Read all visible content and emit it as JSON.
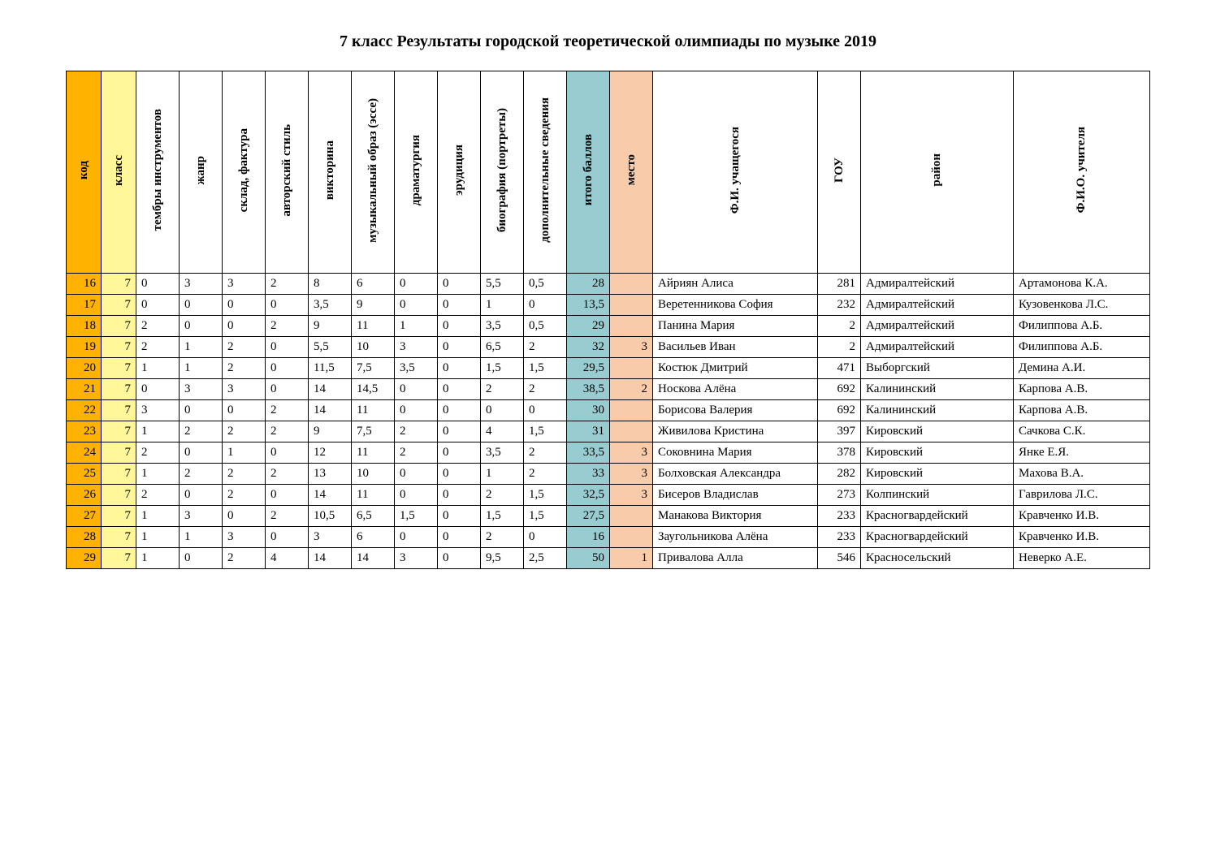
{
  "title": "7 класс Результаты городской теоретической олимпиады по музыке 2019",
  "colors": {
    "kod_bg": "#ffb300",
    "klass_bg": "#fff79a",
    "itogo_bg": "#99ccd0",
    "mesto_bg": "#f8cbaa",
    "border": "#000000",
    "bg": "#ffffff"
  },
  "columns": [
    {
      "key": "kod",
      "label": "код",
      "bg": "#ffb300",
      "class": "c-kod",
      "align": "right"
    },
    {
      "key": "klass",
      "label": "класс",
      "bg": "#fff79a",
      "class": "c-klass",
      "align": "right"
    },
    {
      "key": "c1",
      "label": "тембры  инструментов",
      "class": "c-narrow",
      "align": "left"
    },
    {
      "key": "c2",
      "label": "жанр",
      "class": "c-narrow",
      "align": "left"
    },
    {
      "key": "c3",
      "label": "склад, фактура",
      "class": "c-narrow",
      "align": "left"
    },
    {
      "key": "c4",
      "label": "авторский стиль",
      "class": "c-narrow",
      "align": "left"
    },
    {
      "key": "c5",
      "label": "викторина",
      "class": "c-narrow",
      "align": "left"
    },
    {
      "key": "c6",
      "label": "музыкальный образ (эссе)",
      "class": "c-narrow",
      "align": "left"
    },
    {
      "key": "c7",
      "label": "драматургия",
      "class": "c-narrow",
      "align": "left"
    },
    {
      "key": "c8",
      "label": "эрудиция",
      "class": "c-narrow",
      "align": "left"
    },
    {
      "key": "c9",
      "label": "биография (портреты)",
      "class": "c-narrow",
      "align": "left"
    },
    {
      "key": "c10",
      "label": "дополнительные сведения",
      "class": "c-narrow",
      "align": "left"
    },
    {
      "key": "itogo",
      "label": "итого баллов",
      "bg": "#99ccd0",
      "class": "c-narrow",
      "align": "right"
    },
    {
      "key": "mesto",
      "label": "место",
      "bg": "#f8cbaa",
      "class": "c-mesto",
      "align": "right"
    },
    {
      "key": "student",
      "label": "Ф.И. учащегося",
      "class": "c-student",
      "align": "left"
    },
    {
      "key": "gou",
      "label": "ГОУ",
      "class": "c-gou",
      "align": "right"
    },
    {
      "key": "rayon",
      "label": "район",
      "class": "c-rayon",
      "align": "left"
    },
    {
      "key": "teacher",
      "label": "Ф.И.О. учителя",
      "class": "c-teacher",
      "align": "left"
    }
  ],
  "rows": [
    {
      "kod": "16",
      "klass": "7",
      "c1": "0",
      "c2": "3",
      "c3": "3",
      "c4": "2",
      "c5": "8",
      "c6": "6",
      "c7": "0",
      "c8": "0",
      "c9": "5,5",
      "c10": "0,5",
      "itogo": "28",
      "mesto": "",
      "student": "Айриян Алиса",
      "gou": "281",
      "rayon": "Адмиралтейский",
      "teacher": "Артамонова К.А."
    },
    {
      "kod": "17",
      "klass": "7",
      "c1": "0",
      "c2": "0",
      "c3": "0",
      "c4": "0",
      "c5": "3,5",
      "c6": "9",
      "c7": "0",
      "c8": "0",
      "c9": "1",
      "c10": "0",
      "itogo": "13,5",
      "mesto": "",
      "student": "Веретенникова София",
      "gou": "232",
      "rayon": "Адмиралтейский",
      "teacher": "Кузовенкова Л.С."
    },
    {
      "kod": "18",
      "klass": "7",
      "c1": "2",
      "c2": "0",
      "c3": "0",
      "c4": "2",
      "c5": "9",
      "c6": "11",
      "c7": "1",
      "c8": "0",
      "c9": "3,5",
      "c10": "0,5",
      "itogo": "29",
      "mesto": "",
      "student": "Панина Мария",
      "gou": "2",
      "rayon": "Адмиралтейский",
      "teacher": "Филиппова А.Б."
    },
    {
      "kod": "19",
      "klass": "7",
      "c1": "2",
      "c2": "1",
      "c3": "2",
      "c4": "0",
      "c5": "5,5",
      "c6": "10",
      "c7": "3",
      "c8": "0",
      "c9": "6,5",
      "c10": "2",
      "itogo": "32",
      "mesto": "3",
      "student": "Васильев Иван",
      "gou": "2",
      "rayon": "Адмиралтейский",
      "teacher": "Филиппова А.Б."
    },
    {
      "kod": "20",
      "klass": "7",
      "c1": "1",
      "c2": "1",
      "c3": "2",
      "c4": "0",
      "c5": "11,5",
      "c6": "7,5",
      "c7": "3,5",
      "c8": "0",
      "c9": "1,5",
      "c10": "1,5",
      "itogo": "29,5",
      "mesto": "",
      "student": "Костюк Дмитрий",
      "gou": "471",
      "rayon": "Выборгский",
      "teacher": "Демина А.И."
    },
    {
      "kod": "21",
      "klass": "7",
      "c1": "0",
      "c2": "3",
      "c3": "3",
      "c4": "0",
      "c5": "14",
      "c6": "14,5",
      "c7": "0",
      "c8": "0",
      "c9": "2",
      "c10": "2",
      "itogo": "38,5",
      "mesto": "2",
      "student": "Носкова Алёна",
      "gou": "692",
      "rayon": "Калининский",
      "teacher": "Карпова А.В."
    },
    {
      "kod": "22",
      "klass": "7",
      "c1": "3",
      "c2": "0",
      "c3": "0",
      "c4": "2",
      "c5": "14",
      "c6": "11",
      "c7": "0",
      "c8": "0",
      "c9": "0",
      "c10": "0",
      "itogo": "30",
      "mesto": "",
      "student": "Борисова Валерия",
      "gou": "692",
      "rayon": "Калининский",
      "teacher": "Карпова А.В."
    },
    {
      "kod": "23",
      "klass": "7",
      "c1": "1",
      "c2": "2",
      "c3": "2",
      "c4": "2",
      "c5": "9",
      "c6": "7,5",
      "c7": "2",
      "c8": "0",
      "c9": "4",
      "c10": "1,5",
      "itogo": "31",
      "mesto": "",
      "student": "Живилова Кристина",
      "gou": "397",
      "rayon": "Кировский",
      "teacher": "Сачкова С.К."
    },
    {
      "kod": "24",
      "klass": "7",
      "c1": "2",
      "c2": "0",
      "c3": "1",
      "c4": "0",
      "c5": "12",
      "c6": "11",
      "c7": "2",
      "c8": "0",
      "c9": "3,5",
      "c10": "2",
      "itogo": "33,5",
      "mesto": "3",
      "student": "Соковнина Мария",
      "gou": "378",
      "rayon": "Кировский",
      "teacher": "Янке Е.Я."
    },
    {
      "kod": "25",
      "klass": "7",
      "c1": "1",
      "c2": "2",
      "c3": "2",
      "c4": "2",
      "c5": "13",
      "c6": "10",
      "c7": "0",
      "c8": "0",
      "c9": "1",
      "c10": "2",
      "itogo": "33",
      "mesto": "3",
      "student": "Болховская Александра",
      "gou": "282",
      "rayon": "Кировский",
      "teacher": "Махова В.А."
    },
    {
      "kod": "26",
      "klass": "7",
      "c1": "2",
      "c2": "0",
      "c3": "2",
      "c4": "0",
      "c5": "14",
      "c6": "11",
      "c7": "0",
      "c8": "0",
      "c9": "2",
      "c10": "1,5",
      "itogo": "32,5",
      "mesto": "3",
      "student": "Бисеров Владислав",
      "gou": "273",
      "rayon": "Колпинский",
      "teacher": "Гаврилова Л.С."
    },
    {
      "kod": "27",
      "klass": "7",
      "c1": "1",
      "c2": "3",
      "c3": "0",
      "c4": "2",
      "c5": "10,5",
      "c6": "6,5",
      "c7": "1,5",
      "c8": "0",
      "c9": "1,5",
      "c10": "1,5",
      "itogo": "27,5",
      "mesto": "",
      "student": "Манакова Виктория",
      "gou": "233",
      "rayon": "Красногвардейский",
      "teacher": "Кравченко И.В."
    },
    {
      "kod": "28",
      "klass": "7",
      "c1": "1",
      "c2": "1",
      "c3": "3",
      "c4": "0",
      "c5": "3",
      "c6": "6",
      "c7": "0",
      "c8": "0",
      "c9": "2",
      "c10": "0",
      "itogo": "16",
      "mesto": "",
      "student": "Заугольникова Алёна",
      "gou": "233",
      "rayon": "Красногвардейский",
      "teacher": "Кравченко И.В."
    },
    {
      "kod": "29",
      "klass": "7",
      "c1": "1",
      "c2": "0",
      "c3": "2",
      "c4": "4",
      "c5": "14",
      "c6": "14",
      "c7": "3",
      "c8": "0",
      "c9": "9,5",
      "c10": "2,5",
      "itogo": "50",
      "mesto": "1",
      "student": "Привалова Алла",
      "gou": "546",
      "rayon": "Красносельский",
      "teacher": "Неверко А.Е."
    }
  ]
}
